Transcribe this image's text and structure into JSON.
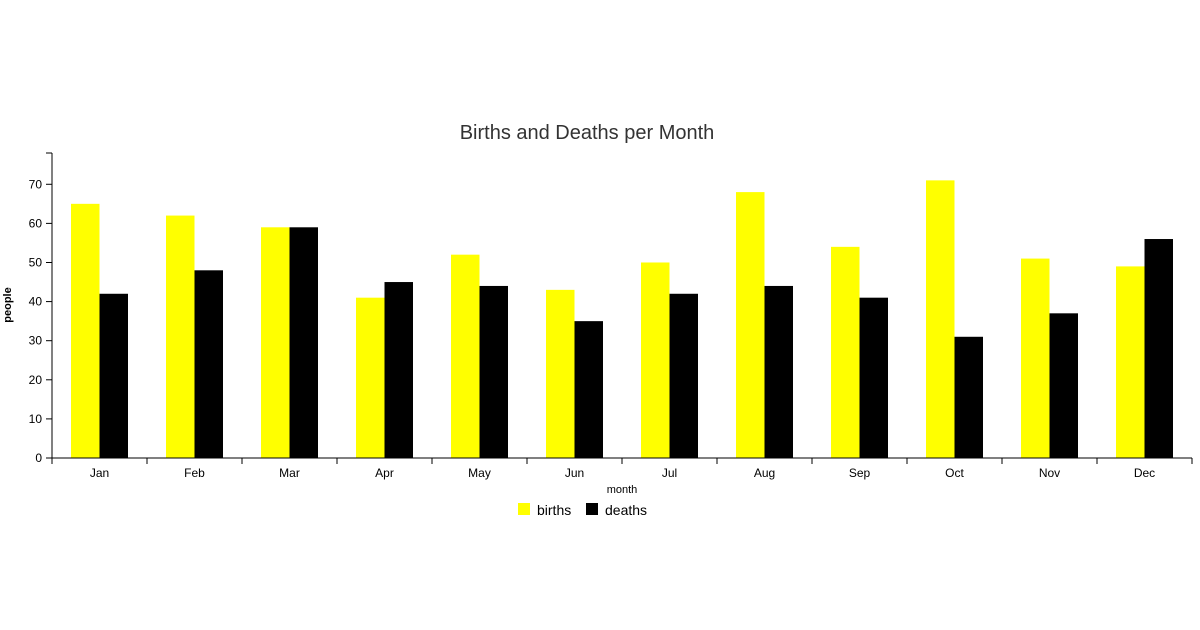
{
  "chart_data": {
    "type": "bar",
    "title": "Births and Deaths per Month",
    "xlabel": "month",
    "ylabel": "people",
    "categories": [
      "Jan",
      "Feb",
      "Mar",
      "Apr",
      "May",
      "Jun",
      "Jul",
      "Aug",
      "Sep",
      "Oct",
      "Nov",
      "Dec"
    ],
    "series": [
      {
        "name": "births",
        "color": "#ffff00",
        "values": [
          65,
          62,
          59,
          41,
          52,
          43,
          50,
          68,
          54,
          71,
          51,
          49
        ]
      },
      {
        "name": "deaths",
        "color": "#000000",
        "values": [
          42,
          48,
          59,
          45,
          44,
          35,
          42,
          44,
          41,
          31,
          37,
          56
        ]
      }
    ],
    "ylim": [
      0,
      78
    ],
    "yticks": [
      0,
      10,
      20,
      30,
      40,
      50,
      60,
      70
    ],
    "grid": false,
    "legend_position": "bottom-center"
  }
}
